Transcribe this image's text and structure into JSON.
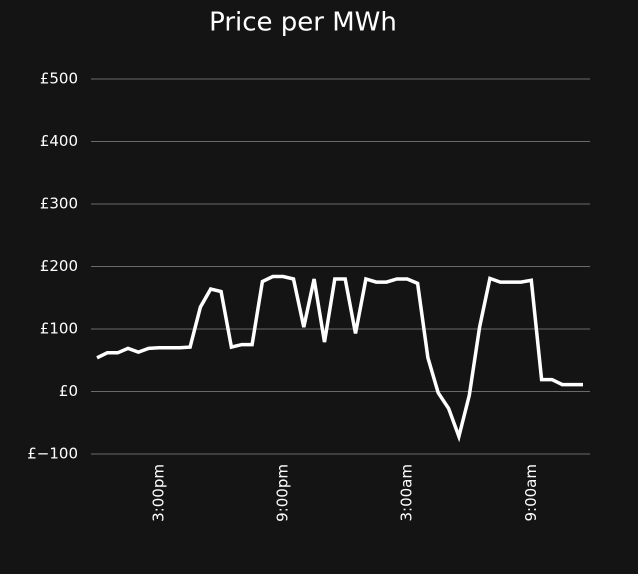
{
  "chart_data": {
    "type": "line",
    "title": "Price per MWh",
    "categories": [
      null,
      null,
      null,
      null,
      null,
      null,
      "3:00pm",
      null,
      null,
      null,
      null,
      null,
      null,
      null,
      null,
      null,
      null,
      null,
      "9:00pm",
      null,
      null,
      null,
      null,
      null,
      null,
      null,
      null,
      null,
      null,
      null,
      "3:00am",
      null,
      null,
      null,
      null,
      null,
      null,
      null,
      null,
      null,
      null,
      null,
      "9:00am",
      null,
      null,
      null,
      null,
      null
    ],
    "series": [
      {
        "color": "#ffffff",
        "values": [
          54,
          62,
          62,
          69,
          63,
          69,
          70,
          70,
          70,
          71,
          135,
          164,
          160,
          71,
          75,
          75,
          176,
          184,
          184,
          180,
          103,
          180,
          79,
          180,
          180,
          93,
          180,
          175,
          175,
          180,
          180,
          173,
          54,
          -2,
          -27,
          -72,
          -6,
          103,
          181,
          175,
          175,
          175,
          178,
          19,
          19,
          11,
          11,
          11
        ]
      }
    ],
    "ylim": [
      -100,
      500
    ],
    "yticks": [
      {
        "value": -100,
        "label": "£−100"
      },
      {
        "value": 0,
        "label": "£0"
      },
      {
        "value": 100,
        "label": "£100"
      },
      {
        "value": 200,
        "label": "£200"
      },
      {
        "value": 300,
        "label": "£300"
      },
      {
        "value": 400,
        "label": "£400"
      },
      {
        "value": 500,
        "label": "£500"
      }
    ],
    "grid": true
  }
}
